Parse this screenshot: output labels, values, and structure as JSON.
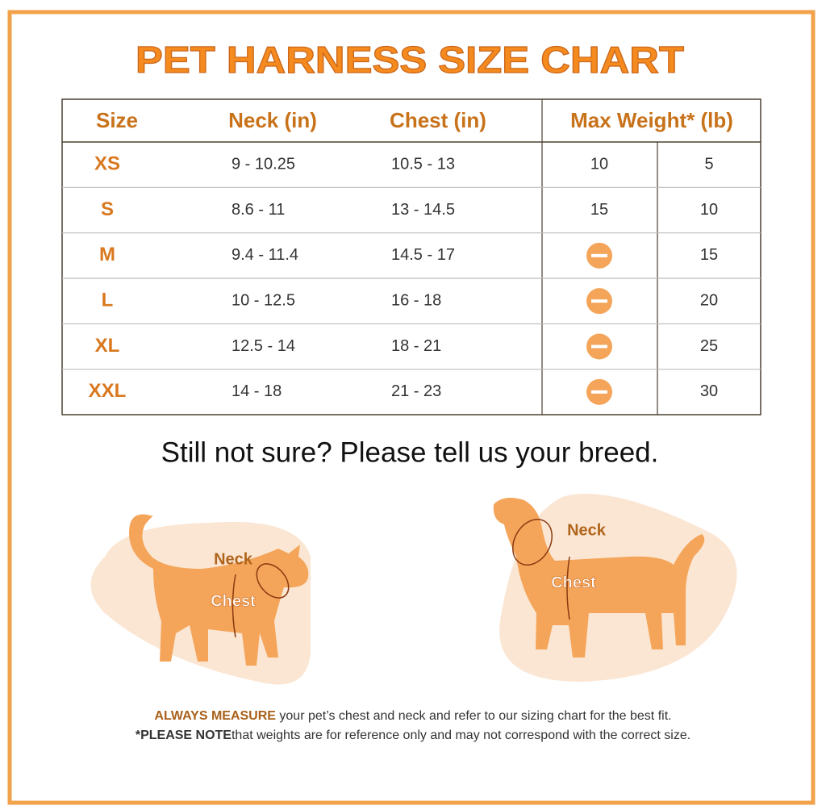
{
  "title": "PET HARNESS SIZE CHART",
  "table": {
    "headers": [
      "Size",
      "Neck (in)",
      "Chest (in)",
      "Max Weight* (lb)"
    ],
    "rows": [
      [
        "XS",
        "9 - 10.25",
        "10.5 - 13",
        "10",
        "5"
      ],
      [
        "S",
        "8.6 - 11",
        "13 - 14.5",
        "15",
        "10"
      ],
      [
        "M",
        "9.4 - 11.4",
        "14.5 - 17",
        null,
        "15"
      ],
      [
        "L",
        "10 - 12.5",
        "16 - 18",
        null,
        "20"
      ],
      [
        "XL",
        "12.5 - 14",
        "18 - 21",
        null,
        "25"
      ],
      [
        "XXL",
        "14 - 18",
        "21 - 23",
        null,
        "30"
      ]
    ]
  },
  "prompt": "Still not sure? Please tell us your breed.",
  "cat": {
    "neck_label": "Neck",
    "chest_label": "Chest"
  },
  "dog": {
    "neck_label": "Neck",
    "chest_label": "Chest"
  },
  "notes": [
    {
      "bold": "ALWAYS MEASURE",
      "text": " your pet’s chest and neck and refer to our sizing chart for the best fit."
    },
    {
      "bold": "*PLEASE NOTE",
      "text": "that weights are for reference only and may not correspond with the correct size."
    }
  ]
}
